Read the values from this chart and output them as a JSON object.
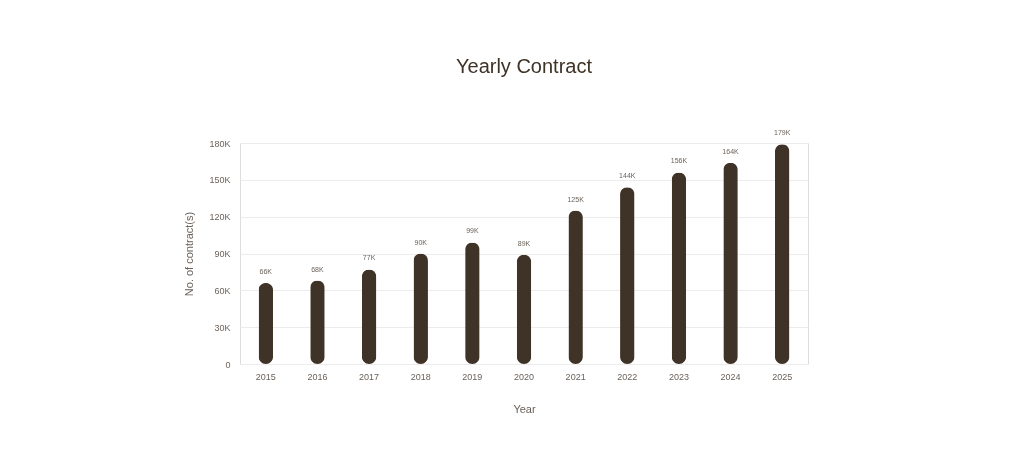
{
  "chart_data": {
    "type": "bar",
    "title": "Yearly Contract",
    "xlabel": "Year",
    "ylabel": "No. of contract(s)",
    "categories": [
      "2015",
      "2016",
      "2017",
      "2018",
      "2019",
      "2020",
      "2021",
      "2022",
      "2023",
      "2024",
      "2025"
    ],
    "values": [
      66000,
      68000,
      77000,
      90000,
      99000,
      89000,
      125000,
      144000,
      156000,
      164000,
      179000
    ],
    "value_labels": [
      "66K",
      "68K",
      "77K",
      "90K",
      "99K",
      "89K",
      "125K",
      "144K",
      "156K",
      "164K",
      "179K"
    ],
    "color": "#3f3226",
    "ylim": [
      0,
      180000
    ],
    "yticks": [
      0,
      {
        "value": 30000,
        "label": "30K"
      },
      {
        "value": 60000,
        "label": "60K"
      },
      {
        "value": 90000,
        "label": "90K"
      },
      {
        "value": 120000,
        "label": "120K"
      },
      {
        "value": 150000,
        "label": "150K"
      },
      {
        "value": 180000,
        "label": "180K"
      }
    ],
    "grid": "y"
  }
}
